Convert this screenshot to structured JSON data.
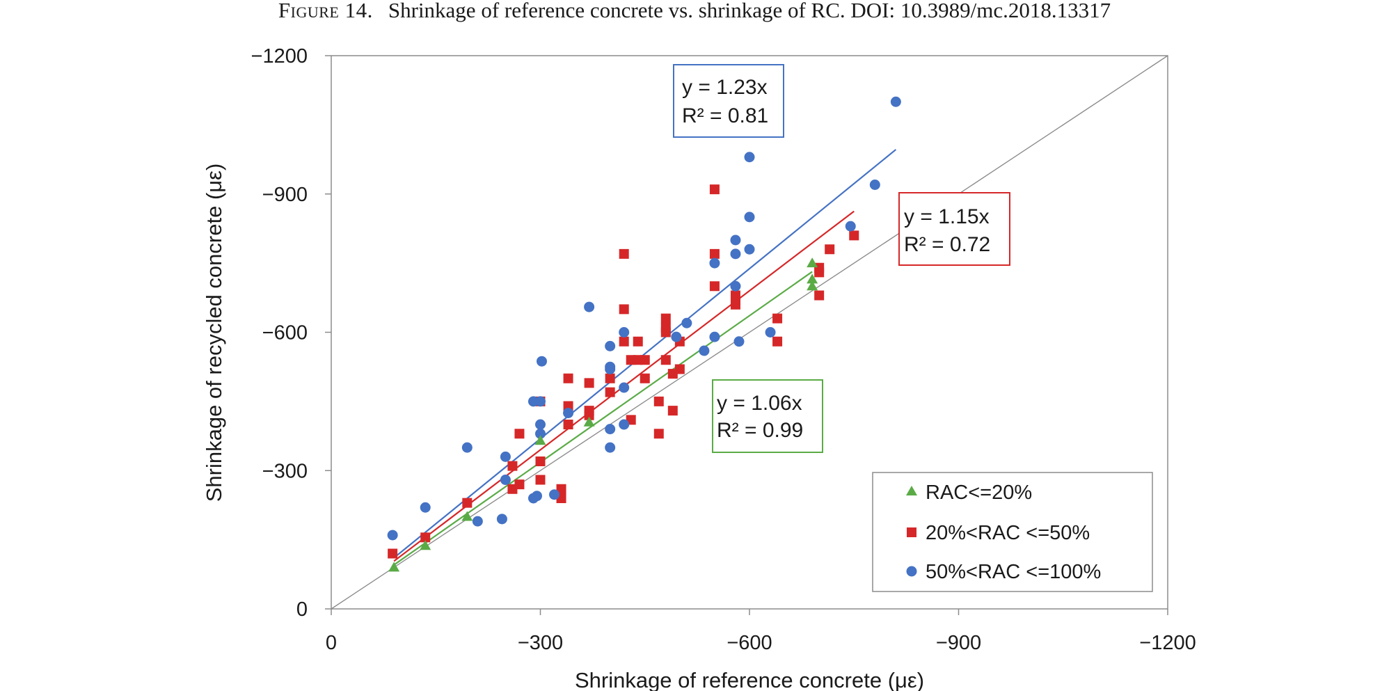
{
  "figure": {
    "label": "Figure 14.",
    "caption": "Shrinkage of reference concrete vs. shrinkage of RC. DOI: 10.3989/mc.2018.13317"
  },
  "chart_data": {
    "type": "scatter",
    "xlabel": "Shrinkage of reference concrete (με)",
    "ylabel": "Shrinkage of recycled concrete (με)",
    "xlim": [
      0,
      -1200
    ],
    "ylim": [
      0,
      -1200
    ],
    "xticks": [
      0,
      -300,
      -600,
      -900,
      -1200
    ],
    "yticks": [
      0,
      -300,
      -600,
      -900,
      -1200
    ],
    "xtick_labels": [
      "0",
      "−300",
      "−600",
      "−900",
      "−1200"
    ],
    "ytick_labels": [
      "0",
      "−300",
      "−600",
      "−900",
      "−1200"
    ],
    "identity_line": true,
    "legend_position": "bottom-right",
    "series": [
      {
        "name": "RAC<=20%",
        "marker": "triangle",
        "color": "#5aab46",
        "fit_slope": 1.06,
        "fit_equation": "y = 1.06x",
        "r2_label": "R² = 0.99",
        "fit_range": [
          -90,
          -690
        ],
        "points": [
          [
            -90,
            -90
          ],
          [
            -135,
            -137
          ],
          [
            -195,
            -200
          ],
          [
            -300,
            -365
          ],
          [
            -370,
            -405
          ],
          [
            -690,
            -750
          ],
          [
            -690,
            -715
          ],
          [
            -690,
            -700
          ]
        ]
      },
      {
        "name": "20%<RAC <=50%",
        "marker": "square",
        "color": "#d62728",
        "fit_slope": 1.15,
        "fit_equation": "y = 1.15x",
        "r2_label": "R² = 0.72",
        "fit_range": [
          -90,
          -750
        ],
        "points": [
          [
            -88,
            -120
          ],
          [
            -135,
            -155
          ],
          [
            -195,
            -230
          ],
          [
            -260,
            -260
          ],
          [
            -260,
            -310
          ],
          [
            -270,
            -270
          ],
          [
            -270,
            -380
          ],
          [
            -300,
            -280
          ],
          [
            -300,
            -320
          ],
          [
            -300,
            -450
          ],
          [
            -330,
            -240
          ],
          [
            -330,
            -260
          ],
          [
            -340,
            -400
          ],
          [
            -340,
            -440
          ],
          [
            -340,
            -500
          ],
          [
            -370,
            -420
          ],
          [
            -370,
            -430
          ],
          [
            -370,
            -490
          ],
          [
            -400,
            -470
          ],
          [
            -400,
            -500
          ],
          [
            -420,
            -580
          ],
          [
            -420,
            -650
          ],
          [
            -420,
            -770
          ],
          [
            -430,
            -410
          ],
          [
            -430,
            -540
          ],
          [
            -440,
            -540
          ],
          [
            -440,
            -580
          ],
          [
            -450,
            -500
          ],
          [
            -450,
            -540
          ],
          [
            -470,
            -380
          ],
          [
            -470,
            -450
          ],
          [
            -480,
            -540
          ],
          [
            -480,
            -600
          ],
          [
            -480,
            -610
          ],
          [
            -480,
            -630
          ],
          [
            -490,
            -430
          ],
          [
            -490,
            -510
          ],
          [
            -500,
            -520
          ],
          [
            -500,
            -580
          ],
          [
            -550,
            -700
          ],
          [
            -550,
            -770
          ],
          [
            -550,
            -910
          ],
          [
            -580,
            -660
          ],
          [
            -580,
            -670
          ],
          [
            -580,
            -680
          ],
          [
            -640,
            -580
          ],
          [
            -640,
            -630
          ],
          [
            -700,
            -680
          ],
          [
            -700,
            -730
          ],
          [
            -700,
            -740
          ],
          [
            -715,
            -780
          ],
          [
            -750,
            -810
          ]
        ]
      },
      {
        "name": "50%<RAC <=100%",
        "marker": "circle",
        "color": "#4472c4",
        "fit_slope": 1.23,
        "fit_equation": "y = 1.23x",
        "r2_label": "R² = 0.81",
        "fit_range": [
          -90,
          -810
        ],
        "points": [
          [
            -88,
            -160
          ],
          [
            -135,
            -220
          ],
          [
            -195,
            -350
          ],
          [
            -210,
            -190
          ],
          [
            -245,
            -195
          ],
          [
            -250,
            -280
          ],
          [
            -250,
            -330
          ],
          [
            -290,
            -240
          ],
          [
            -290,
            -450
          ],
          [
            -295,
            -245
          ],
          [
            -300,
            -380
          ],
          [
            -300,
            -400
          ],
          [
            -300,
            -450
          ],
          [
            -302,
            -537
          ],
          [
            -320,
            -248
          ],
          [
            -340,
            -425
          ],
          [
            -370,
            -655
          ],
          [
            -400,
            -350
          ],
          [
            -400,
            -390
          ],
          [
            -400,
            -520
          ],
          [
            -400,
            -525
          ],
          [
            -400,
            -570
          ],
          [
            -420,
            -400
          ],
          [
            -420,
            -480
          ],
          [
            -420,
            -600
          ],
          [
            -495,
            -590
          ],
          [
            -510,
            -620
          ],
          [
            -535,
            -560
          ],
          [
            -550,
            -590
          ],
          [
            -550,
            -750
          ],
          [
            -580,
            -700
          ],
          [
            -580,
            -770
          ],
          [
            -580,
            -800
          ],
          [
            -585,
            -580
          ],
          [
            -600,
            -780
          ],
          [
            -600,
            -850
          ],
          [
            -600,
            -980
          ],
          [
            -630,
            -600
          ],
          [
            -745,
            -830
          ],
          [
            -780,
            -920
          ],
          [
            -810,
            -1100
          ]
        ]
      }
    ]
  }
}
